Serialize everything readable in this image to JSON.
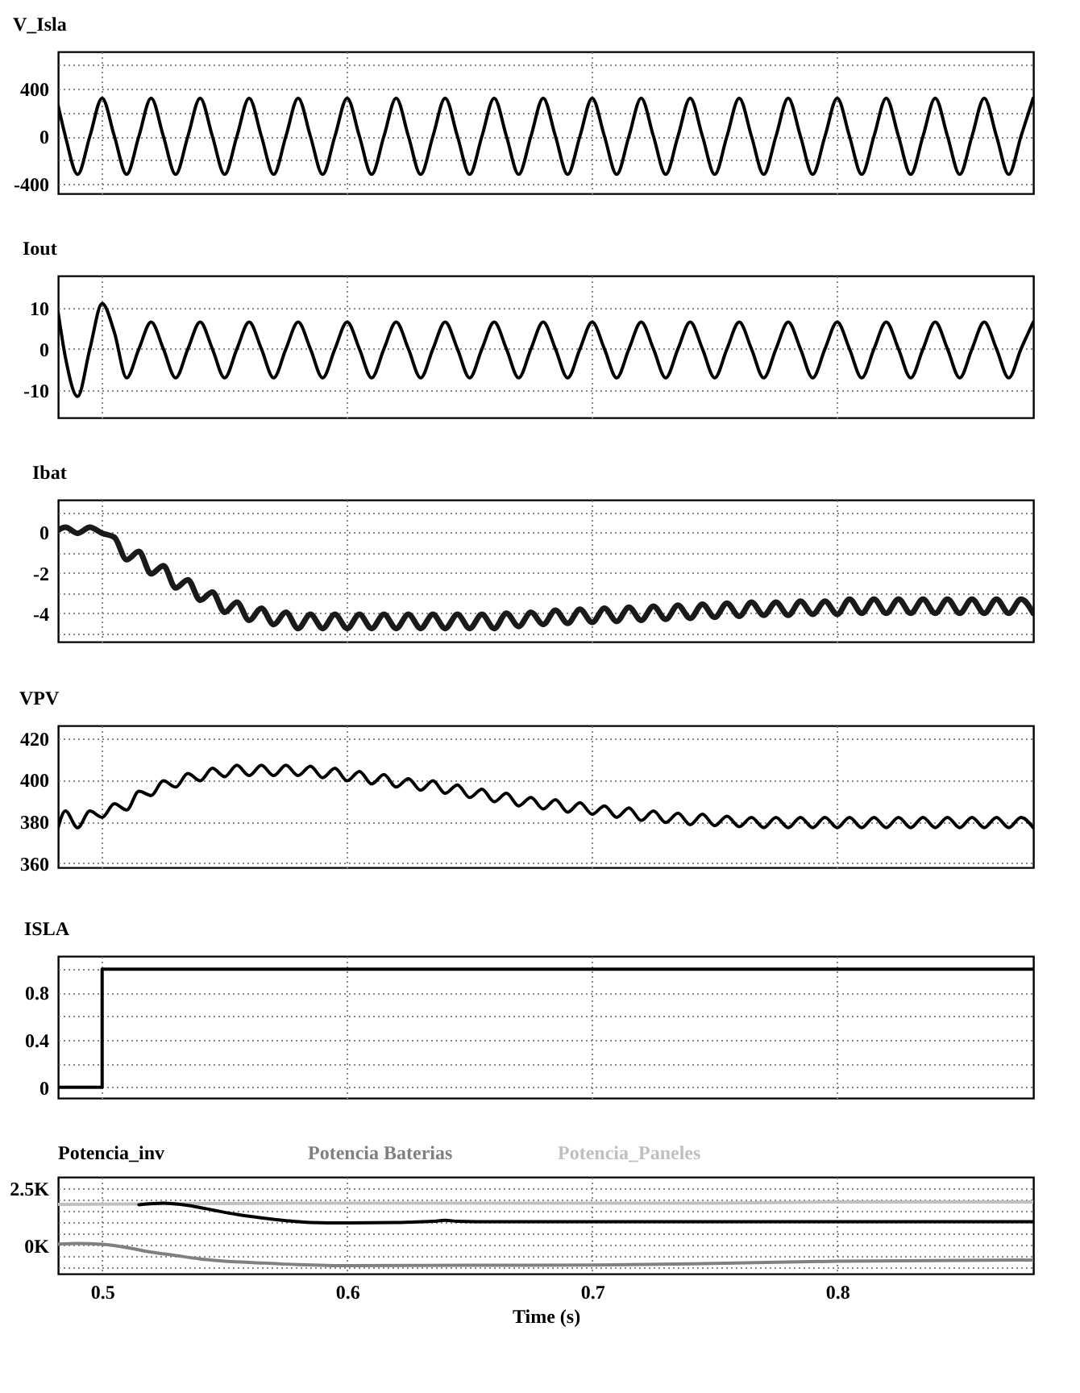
{
  "chart_data": [
    {
      "type": "line",
      "title": "V_Isla",
      "xlim": [
        0.482,
        0.88
      ],
      "xticks": [
        0.5,
        0.6,
        0.7,
        0.8
      ],
      "ylim": [
        -480,
        710
      ],
      "yticks": [
        {
          "value": -400,
          "label": "-400"
        },
        {
          "value": -200,
          "label": null
        },
        0,
        {
          "value": 200,
          "label": null
        },
        400,
        {
          "value": 600,
          "label": null
        }
      ],
      "grid": true,
      "tick_labels": "y",
      "x": [
        0.482,
        0.485,
        0.49,
        0.495,
        0.5,
        0.505,
        0.51,
        0.515,
        0.52,
        0.525,
        0.53,
        0.535,
        0.54,
        0.545,
        0.55,
        0.555,
        0.56,
        0.565,
        0.57,
        0.575,
        0.58,
        0.585,
        0.59,
        0.595,
        0.6,
        0.605,
        0.61,
        0.615,
        0.62,
        0.625,
        0.63,
        0.635,
        0.64,
        0.645,
        0.65,
        0.655,
        0.66,
        0.665,
        0.67,
        0.675,
        0.68,
        0.685,
        0.69,
        0.695,
        0.7,
        0.705,
        0.71,
        0.715,
        0.72,
        0.725,
        0.73,
        0.735,
        0.74,
        0.745,
        0.75,
        0.755,
        0.76,
        0.765,
        0.77,
        0.775,
        0.78,
        0.785,
        0.79,
        0.795,
        0.8,
        0.805,
        0.81,
        0.815,
        0.82,
        0.825,
        0.83,
        0.835,
        0.84,
        0.845,
        0.85,
        0.855,
        0.86,
        0.865,
        0.87,
        0.875,
        0.88
      ],
      "series": [
        {
          "color": "#000000",
          "values": [
            260,
            0,
            -320,
            0,
            320,
            0,
            -320,
            0,
            320,
            0,
            -320,
            0,
            320,
            0,
            -320,
            0,
            320,
            0,
            -320,
            0,
            320,
            0,
            -320,
            0,
            320,
            0,
            -320,
            0,
            320,
            0,
            -320,
            0,
            320,
            0,
            -320,
            0,
            320,
            0,
            -320,
            0,
            320,
            0,
            -320,
            0,
            320,
            0,
            -320,
            0,
            320,
            0,
            -320,
            0,
            320,
            0,
            -320,
            0,
            320,
            0,
            -320,
            0,
            320,
            0,
            -320,
            0,
            320,
            0,
            -320,
            0,
            320,
            0,
            -320,
            0,
            320,
            0,
            -320,
            0,
            320,
            0,
            -320,
            0,
            320
          ]
        }
      ]
    },
    {
      "type": "line",
      "title": "Iout",
      "xlim": [
        0.482,
        0.88
      ],
      "xticks": [
        0.5,
        0.6,
        0.7,
        0.8
      ],
      "ylim": [
        -16.6,
        17.7
      ],
      "yticks": [
        -10,
        0,
        10
      ],
      "grid": true,
      "tick_labels": "y",
      "x": [
        0.482,
        0.485,
        0.49,
        0.495,
        0.5,
        0.505,
        0.51,
        0.515,
        0.52,
        0.525,
        0.53,
        0.535,
        0.54,
        0.545,
        0.55,
        0.555,
        0.56,
        0.565,
        0.57,
        0.575,
        0.58,
        0.585,
        0.59,
        0.595,
        0.6,
        0.605,
        0.61,
        0.615,
        0.62,
        0.625,
        0.63,
        0.635,
        0.64,
        0.645,
        0.65,
        0.655,
        0.66,
        0.665,
        0.67,
        0.675,
        0.68,
        0.685,
        0.69,
        0.695,
        0.7,
        0.705,
        0.71,
        0.715,
        0.72,
        0.725,
        0.73,
        0.735,
        0.74,
        0.745,
        0.75,
        0.755,
        0.76,
        0.765,
        0.77,
        0.775,
        0.78,
        0.785,
        0.79,
        0.795,
        0.8,
        0.805,
        0.81,
        0.815,
        0.82,
        0.825,
        0.83,
        0.835,
        0.84,
        0.845,
        0.85,
        0.855,
        0.86,
        0.865,
        0.87,
        0.875,
        0.88
      ],
      "series": [
        {
          "color": "#000000",
          "values": [
            9,
            -2,
            -11.5,
            0,
            11,
            4,
            -7,
            0,
            6.5,
            0,
            -7,
            0,
            6.5,
            0,
            -7,
            0,
            6.5,
            0,
            -7,
            0,
            6.5,
            0,
            -7,
            0,
            6.5,
            0,
            -7,
            0,
            6.5,
            0,
            -7,
            0,
            6.5,
            0,
            -7,
            0,
            6.5,
            0,
            -7,
            0,
            6.5,
            0,
            -7,
            0,
            6.5,
            0,
            -7,
            0,
            6.5,
            0,
            -7,
            0,
            6.5,
            0,
            -7,
            0,
            6.5,
            0,
            -7,
            0,
            6.5,
            0,
            -7,
            0,
            6.5,
            0,
            -7,
            0,
            6.5,
            0,
            -7,
            0,
            6.5,
            0,
            -7,
            0,
            6.5,
            0,
            -7,
            0,
            6.5
          ]
        }
      ]
    },
    {
      "type": "line",
      "title": "Ibat",
      "xlim": [
        0.482,
        0.88
      ],
      "xticks": [
        0.5,
        0.6,
        0.7,
        0.8
      ],
      "ylim": [
        -5.4,
        1.6
      ],
      "yticks": [
        {
          "value": -5,
          "label": null
        },
        -4,
        {
          "value": -3,
          "label": null
        },
        -2,
        {
          "value": -1,
          "label": null
        },
        0,
        {
          "value": 1,
          "label": null
        }
      ],
      "grid": true,
      "tick_labels": "y",
      "x": [
        0.482,
        0.485,
        0.49,
        0.495,
        0.5,
        0.505,
        0.51,
        0.515,
        0.52,
        0.525,
        0.53,
        0.535,
        0.54,
        0.545,
        0.55,
        0.555,
        0.56,
        0.565,
        0.57,
        0.575,
        0.58,
        0.585,
        0.59,
        0.595,
        0.6,
        0.605,
        0.61,
        0.615,
        0.62,
        0.625,
        0.63,
        0.635,
        0.64,
        0.645,
        0.65,
        0.655,
        0.66,
        0.665,
        0.67,
        0.675,
        0.68,
        0.685,
        0.69,
        0.695,
        0.7,
        0.705,
        0.71,
        0.715,
        0.72,
        0.725,
        0.73,
        0.735,
        0.74,
        0.745,
        0.75,
        0.755,
        0.76,
        0.765,
        0.77,
        0.775,
        0.78,
        0.785,
        0.79,
        0.795,
        0.8,
        0.805,
        0.81,
        0.815,
        0.82,
        0.825,
        0.83,
        0.835,
        0.84,
        0.845,
        0.85,
        0.855,
        0.86,
        0.865,
        0.87,
        0.875,
        0.88
      ],
      "series": [
        {
          "color": "#1a1a1a",
          "values": [
            0.1,
            0.25,
            -0.05,
            0.25,
            -0.05,
            -0.25,
            -1.35,
            -0.95,
            -2.05,
            -1.65,
            -2.75,
            -2.35,
            -3.35,
            -2.95,
            -3.95,
            -3.45,
            -4.35,
            -3.75,
            -4.55,
            -3.95,
            -4.75,
            -4.05,
            -4.75,
            -4.05,
            -4.75,
            -4.05,
            -4.75,
            -4.05,
            -4.75,
            -4.05,
            -4.75,
            -4.05,
            -4.75,
            -4.05,
            -4.75,
            -4.05,
            -4.75,
            -4.0,
            -4.65,
            -3.95,
            -4.55,
            -3.85,
            -4.5,
            -3.8,
            -4.45,
            -3.75,
            -4.4,
            -3.7,
            -4.35,
            -3.65,
            -4.3,
            -3.6,
            -4.25,
            -3.55,
            -4.2,
            -3.5,
            -4.15,
            -3.45,
            -4.1,
            -3.45,
            -4.1,
            -3.4,
            -4.05,
            -3.4,
            -4.05,
            -3.3,
            -4.0,
            -3.3,
            -4.0,
            -3.3,
            -4.0,
            -3.3,
            -4.0,
            -3.3,
            -4.0,
            -3.3,
            -4.0,
            -3.3,
            -4.0,
            -3.3,
            -4.0
          ]
        }
      ]
    },
    {
      "type": "line",
      "title": "VPV",
      "xlim": [
        0.482,
        0.88
      ],
      "xticks": [
        0.5,
        0.6,
        0.7,
        0.8
      ],
      "ylim": [
        358,
        426
      ],
      "yticks": [
        360,
        380,
        400,
        420
      ],
      "grid": true,
      "tick_labels": "y",
      "x": [
        0.482,
        0.485,
        0.49,
        0.495,
        0.5,
        0.505,
        0.51,
        0.515,
        0.52,
        0.525,
        0.53,
        0.535,
        0.54,
        0.545,
        0.55,
        0.555,
        0.56,
        0.565,
        0.57,
        0.575,
        0.58,
        0.585,
        0.59,
        0.595,
        0.6,
        0.605,
        0.61,
        0.615,
        0.62,
        0.625,
        0.63,
        0.635,
        0.64,
        0.645,
        0.65,
        0.655,
        0.66,
        0.665,
        0.67,
        0.675,
        0.68,
        0.685,
        0.69,
        0.695,
        0.7,
        0.705,
        0.71,
        0.715,
        0.72,
        0.725,
        0.73,
        0.735,
        0.74,
        0.745,
        0.75,
        0.755,
        0.76,
        0.765,
        0.77,
        0.775,
        0.78,
        0.785,
        0.79,
        0.795,
        0.8,
        0.805,
        0.81,
        0.815,
        0.82,
        0.825,
        0.83,
        0.835,
        0.84,
        0.845,
        0.85,
        0.855,
        0.86,
        0.865,
        0.87,
        0.875,
        0.88
      ],
      "series": [
        {
          "color": "#000000",
          "values": [
            377,
            385,
            377,
            385,
            382,
            388.5,
            385.5,
            394.5,
            392.5,
            399.5,
            396.5,
            403,
            399.5,
            405.5,
            401.5,
            407,
            402,
            407,
            402,
            407,
            402,
            406.5,
            401,
            405.5,
            399.5,
            404,
            398,
            402.5,
            396.5,
            400.5,
            395,
            399.5,
            393.5,
            397.5,
            391.5,
            395.5,
            389.5,
            393.5,
            387.5,
            391.5,
            386,
            390.5,
            384.5,
            389,
            383.5,
            387.5,
            382,
            386.5,
            380.5,
            385,
            379.5,
            384,
            378.5,
            383.5,
            378,
            382.5,
            377.5,
            382,
            377,
            382,
            377,
            382,
            377,
            382,
            377,
            382,
            377,
            382,
            377,
            382,
            377,
            382,
            377,
            382,
            377,
            382,
            377,
            382,
            377,
            382,
            377
          ]
        }
      ]
    },
    {
      "type": "step",
      "title": "ISLA",
      "xlim": [
        0.482,
        0.88
      ],
      "xticks": [
        0.5,
        0.6,
        0.7,
        0.8
      ],
      "ylim": [
        -0.09,
        1.11
      ],
      "yticks": [
        0,
        {
          "value": 0.2,
          "label": null
        },
        0.4,
        {
          "value": 0.6,
          "label": null
        },
        0.8,
        {
          "value": 1,
          "label": null
        }
      ],
      "grid": true,
      "tick_labels": "y",
      "x": [
        0.482,
        0.5,
        0.88
      ],
      "series": [
        {
          "color": "#000000",
          "values": [
            0,
            1,
            1
          ]
        }
      ]
    },
    {
      "type": "line",
      "xlabel": "Time (s)",
      "xlim": [
        0.482,
        0.88
      ],
      "xticks": [
        0.5,
        0.6,
        0.7,
        0.8
      ],
      "ylim": [
        -1250,
        3000
      ],
      "yticks": [
        {
          "value": -1000,
          "label": null
        },
        {
          "value": -500,
          "label": null
        },
        {
          "value": 0,
          "label": "0K"
        },
        {
          "value": 500,
          "label": null
        },
        {
          "value": 1000,
          "label": null
        },
        {
          "value": 1500,
          "label": null
        },
        {
          "value": 2000,
          "label": null
        },
        {
          "value": 2500,
          "label": "2.5K"
        }
      ],
      "grid": true,
      "legend": "top left",
      "series": [
        {
          "name": "Potencia_inv",
          "color": "#000000",
          "x": [
            0.515,
            0.525,
            0.535,
            0.545,
            0.555,
            0.565,
            0.575,
            0.585,
            0.6,
            0.62,
            0.635,
            0.64,
            0.645,
            0.66,
            0.7,
            0.8,
            0.88
          ],
          "values": [
            1780,
            1850,
            1750,
            1550,
            1350,
            1200,
            1080,
            1000,
            980,
            1000,
            1050,
            1100,
            1050,
            1030,
            1030,
            1030,
            1030
          ]
        },
        {
          "name": "Potencia Baterias",
          "color": "#808080",
          "x": [
            0.482,
            0.49,
            0.5,
            0.51,
            0.52,
            0.53,
            0.54,
            0.55,
            0.56,
            0.58,
            0.6,
            0.65,
            0.7,
            0.75,
            0.8,
            0.88
          ],
          "values": [
            50,
            80,
            40,
            -100,
            -300,
            -450,
            -600,
            -700,
            -750,
            -850,
            -900,
            -880,
            -870,
            -800,
            -700,
            -650
          ]
        },
        {
          "name": "Potencia_Paneles",
          "color": "#c0c0c0",
          "x": [
            0.482,
            0.6,
            0.75,
            0.8,
            0.88
          ],
          "values": [
            1800,
            1850,
            1850,
            1900,
            1900
          ]
        }
      ]
    }
  ]
}
